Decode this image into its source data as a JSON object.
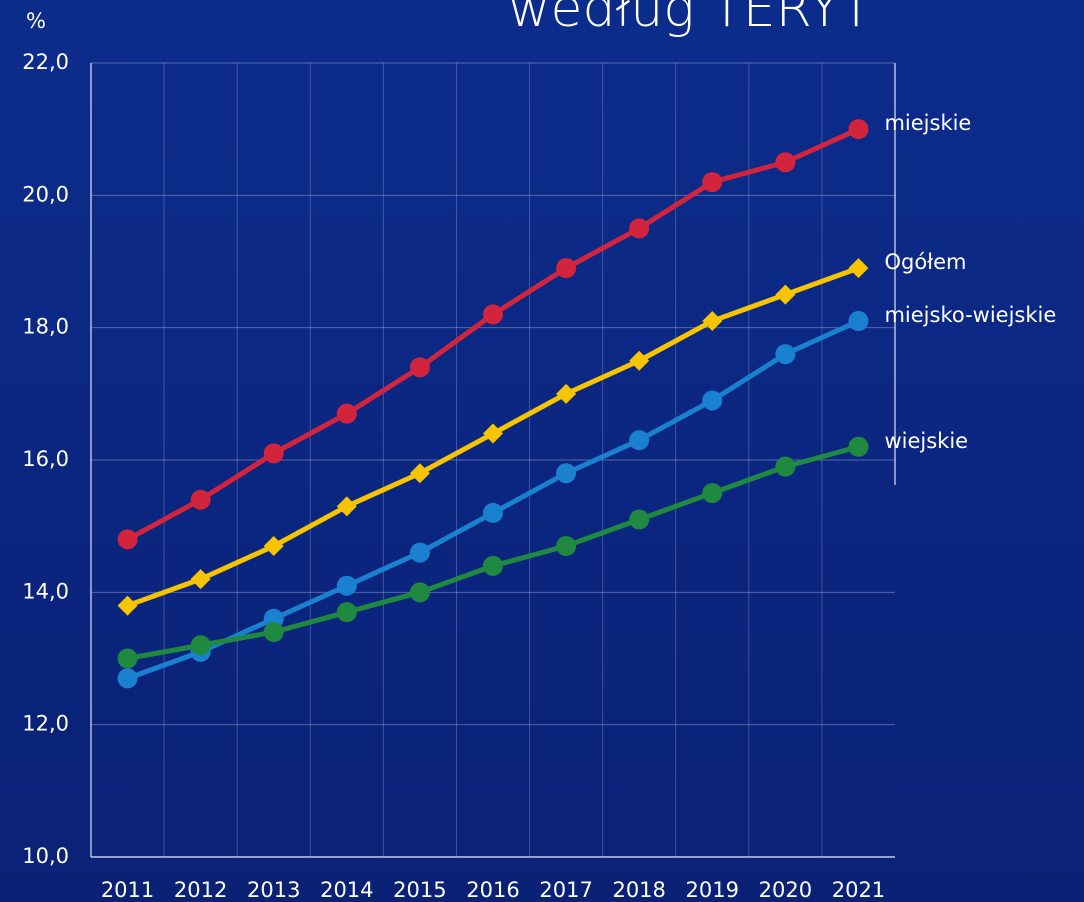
{
  "chart_data": {
    "type": "line",
    "title": "według TERYT",
    "ylabel": "%",
    "categories": [
      "2011",
      "2012",
      "2013",
      "2014",
      "2015",
      "2016",
      "2017",
      "2018",
      "2019",
      "2020",
      "2021"
    ],
    "series": [
      {
        "name": "miejskie",
        "color": "#d2243c",
        "marker": "circle",
        "values": [
          14.8,
          15.4,
          16.1,
          16.7,
          17.4,
          18.2,
          18.9,
          19.5,
          20.2,
          20.5,
          21.0
        ]
      },
      {
        "name": "Ogółem",
        "color": "#f6c400",
        "marker": "diamond",
        "values": [
          13.8,
          14.2,
          14.7,
          15.3,
          15.8,
          16.4,
          17.0,
          17.5,
          18.1,
          18.5,
          18.9
        ]
      },
      {
        "name": "miejsko-wiejskie",
        "color": "#1a80d0",
        "marker": "circle",
        "values": [
          12.7,
          13.1,
          13.6,
          14.1,
          14.6,
          15.2,
          15.8,
          16.3,
          16.9,
          17.6,
          18.1
        ]
      },
      {
        "name": "wiejskie",
        "color": "#1f8a3f",
        "marker": "circle",
        "values": [
          13.0,
          13.2,
          13.4,
          13.7,
          14.0,
          14.4,
          14.7,
          15.1,
          15.5,
          15.9,
          16.2
        ]
      }
    ],
    "ylim": [
      10,
      22
    ],
    "yticks": [
      {
        "value": 10,
        "label": "10,0"
      },
      {
        "value": 12,
        "label": "12,0"
      },
      {
        "value": 14,
        "label": "14,0"
      },
      {
        "value": 16,
        "label": "16,0"
      },
      {
        "value": 18,
        "label": "18,0"
      },
      {
        "value": 20,
        "label": "20,0"
      },
      {
        "value": 22,
        "label": "22,0"
      }
    ],
    "grid": true
  }
}
